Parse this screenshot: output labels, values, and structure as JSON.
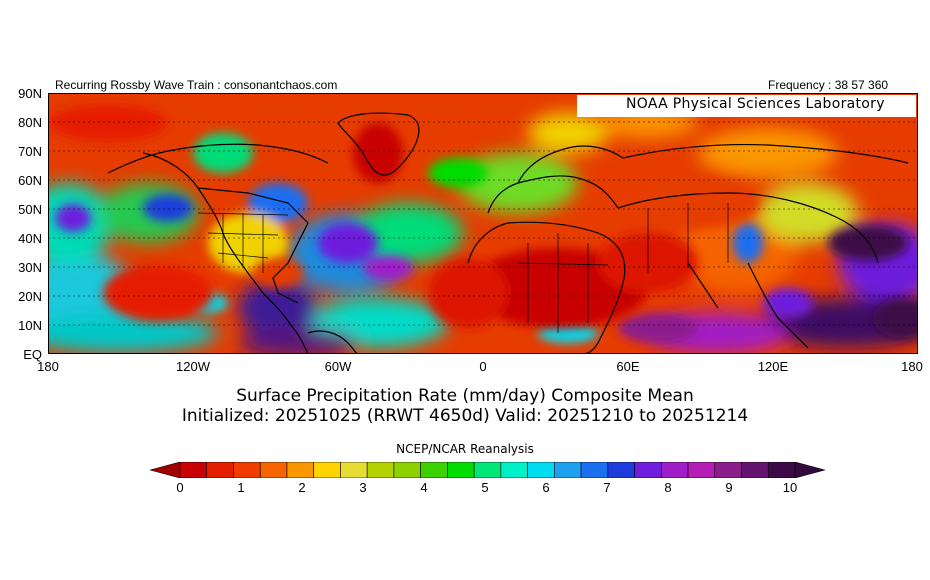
{
  "header": {
    "left_text": "Recurring Rossby Wave Train : consonantchaos.com",
    "right_text": "Frequency : 38 57 360"
  },
  "map": {
    "credit": "NOAA Physical Sciences Laboratory",
    "lat_labels": [
      "90N",
      "80N",
      "70N",
      "60N",
      "50N",
      "40N",
      "30N",
      "20N",
      "10N",
      "EQ"
    ],
    "lon_labels": [
      "180",
      "120W",
      "60W",
      "0",
      "60E",
      "120E",
      "180"
    ]
  },
  "titles": {
    "line1": "Surface Precipitation Rate (mm/day) Composite Mean",
    "line2": "Initialized: 20251025 (RRWT 4650d) Valid: 20251210 to 20251214",
    "source": "NCEP/NCAR Reanalysis"
  },
  "colorbar": {
    "labels": [
      "0",
      "1",
      "2",
      "3",
      "4",
      "5",
      "6",
      "7",
      "8",
      "9",
      "10"
    ],
    "colors": [
      "#c80000",
      "#e61e00",
      "#f03c00",
      "#f56400",
      "#fa9600",
      "#ffd200",
      "#e6dc32",
      "#b4d200",
      "#8cd200",
      "#3cd200",
      "#00dc00",
      "#00e678",
      "#00f0c8",
      "#00dcf0",
      "#1ea0f0",
      "#1e6ef0",
      "#1e3cdc",
      "#6e1edc",
      "#a01ec8",
      "#b41eb4",
      "#8c1e8c",
      "#64146e",
      "#3c0a46"
    ],
    "end_left": "#a00000",
    "end_right": "#320a3c"
  }
}
